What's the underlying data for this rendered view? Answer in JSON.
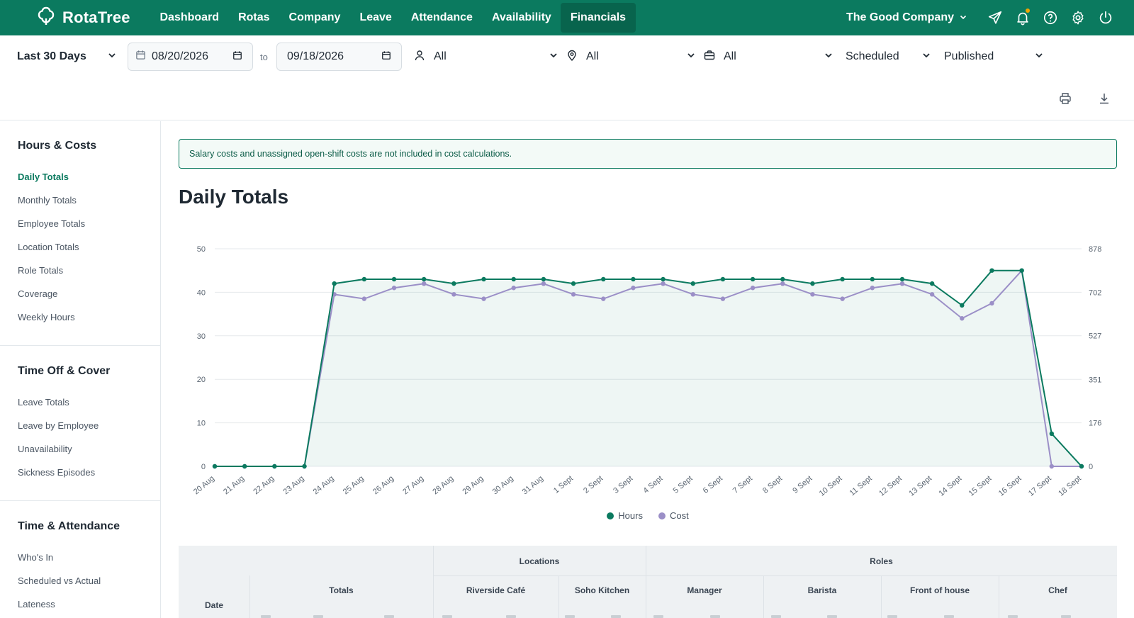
{
  "brand": {
    "name": "RotaTree"
  },
  "nav": {
    "items": [
      "Dashboard",
      "Rotas",
      "Company",
      "Leave",
      "Attendance",
      "Availability",
      "Financials"
    ],
    "active": "Financials",
    "company": "The Good Company"
  },
  "filters": {
    "range": "Last 30 Days",
    "date_from": "08/20/2026",
    "to_label": "to",
    "date_to": "09/18/2026",
    "employee": "All",
    "location": "All",
    "role": "All",
    "shift_type": "Scheduled",
    "status": "Published"
  },
  "sidebar": {
    "sections": [
      {
        "title": "Hours & Costs",
        "items": [
          "Daily Totals",
          "Monthly Totals",
          "Employee Totals",
          "Location Totals",
          "Role Totals",
          "Coverage",
          "Weekly Hours"
        ]
      },
      {
        "title": "Time Off & Cover",
        "items": [
          "Leave Totals",
          "Leave by Employee",
          "Unavailability",
          "Sickness Episodes"
        ]
      },
      {
        "title": "Time & Attendance",
        "items": [
          "Who's In",
          "Scheduled vs Actual",
          "Lateness"
        ]
      }
    ],
    "active_item": "Daily Totals"
  },
  "notice": "Salary costs and unassigned open-shift costs are not included in cost calculations.",
  "page_title": "Daily Totals",
  "colors": {
    "brand": "#0b7a5f",
    "hours": "#0b7a5f",
    "cost": "#9b8fc7"
  },
  "chart_data": {
    "type": "line",
    "categories": [
      "20 Aug",
      "21 Aug",
      "22 Aug",
      "23 Aug",
      "24 Aug",
      "25 Aug",
      "26 Aug",
      "27 Aug",
      "28 Aug",
      "29 Aug",
      "30 Aug",
      "31 Aug",
      "1 Sept",
      "2 Sept",
      "3 Sept",
      "4 Sept",
      "5 Sept",
      "6 Sept",
      "7 Sept",
      "8 Sept",
      "9 Sept",
      "10 Sept",
      "11 Sept",
      "12 Sept",
      "13 Sept",
      "14 Sept",
      "15 Sept",
      "16 Sept",
      "17 Sept",
      "18 Sept"
    ],
    "series": [
      {
        "name": "Hours",
        "axis": "left",
        "values": [
          0,
          0,
          0,
          0,
          42,
          43,
          43,
          43,
          42,
          43,
          43,
          43,
          42,
          43,
          43,
          43,
          42,
          43,
          43,
          43,
          42,
          43,
          43,
          43,
          42,
          37,
          45,
          45,
          7.5,
          0
        ]
      },
      {
        "name": "Cost",
        "axis": "right",
        "values": [
          0,
          0,
          0,
          0,
          694,
          676,
          720,
          737,
          694,
          676,
          720,
          737,
          694,
          676,
          720,
          737,
          694,
          676,
          720,
          737,
          694,
          676,
          720,
          737,
          694,
          597,
          658,
          790,
          0,
          0
        ]
      }
    ],
    "left_ticks": [
      0,
      10,
      20,
      30,
      40,
      50
    ],
    "right_ticks": [
      0,
      176,
      351,
      527,
      702,
      878
    ],
    "ylim_left": [
      0,
      50
    ],
    "ylim_right": [
      0,
      878
    ],
    "grid": true,
    "legend": "bottom-center"
  },
  "table": {
    "group_headers": {
      "locations": "Locations",
      "roles": "Roles"
    },
    "col_date": "Date",
    "col_totals": "Totals",
    "locations": [
      "Riverside Café",
      "Soho Kitchen"
    ],
    "roles": [
      "Manager",
      "Barista",
      "Front of house",
      "Chef"
    ]
  }
}
